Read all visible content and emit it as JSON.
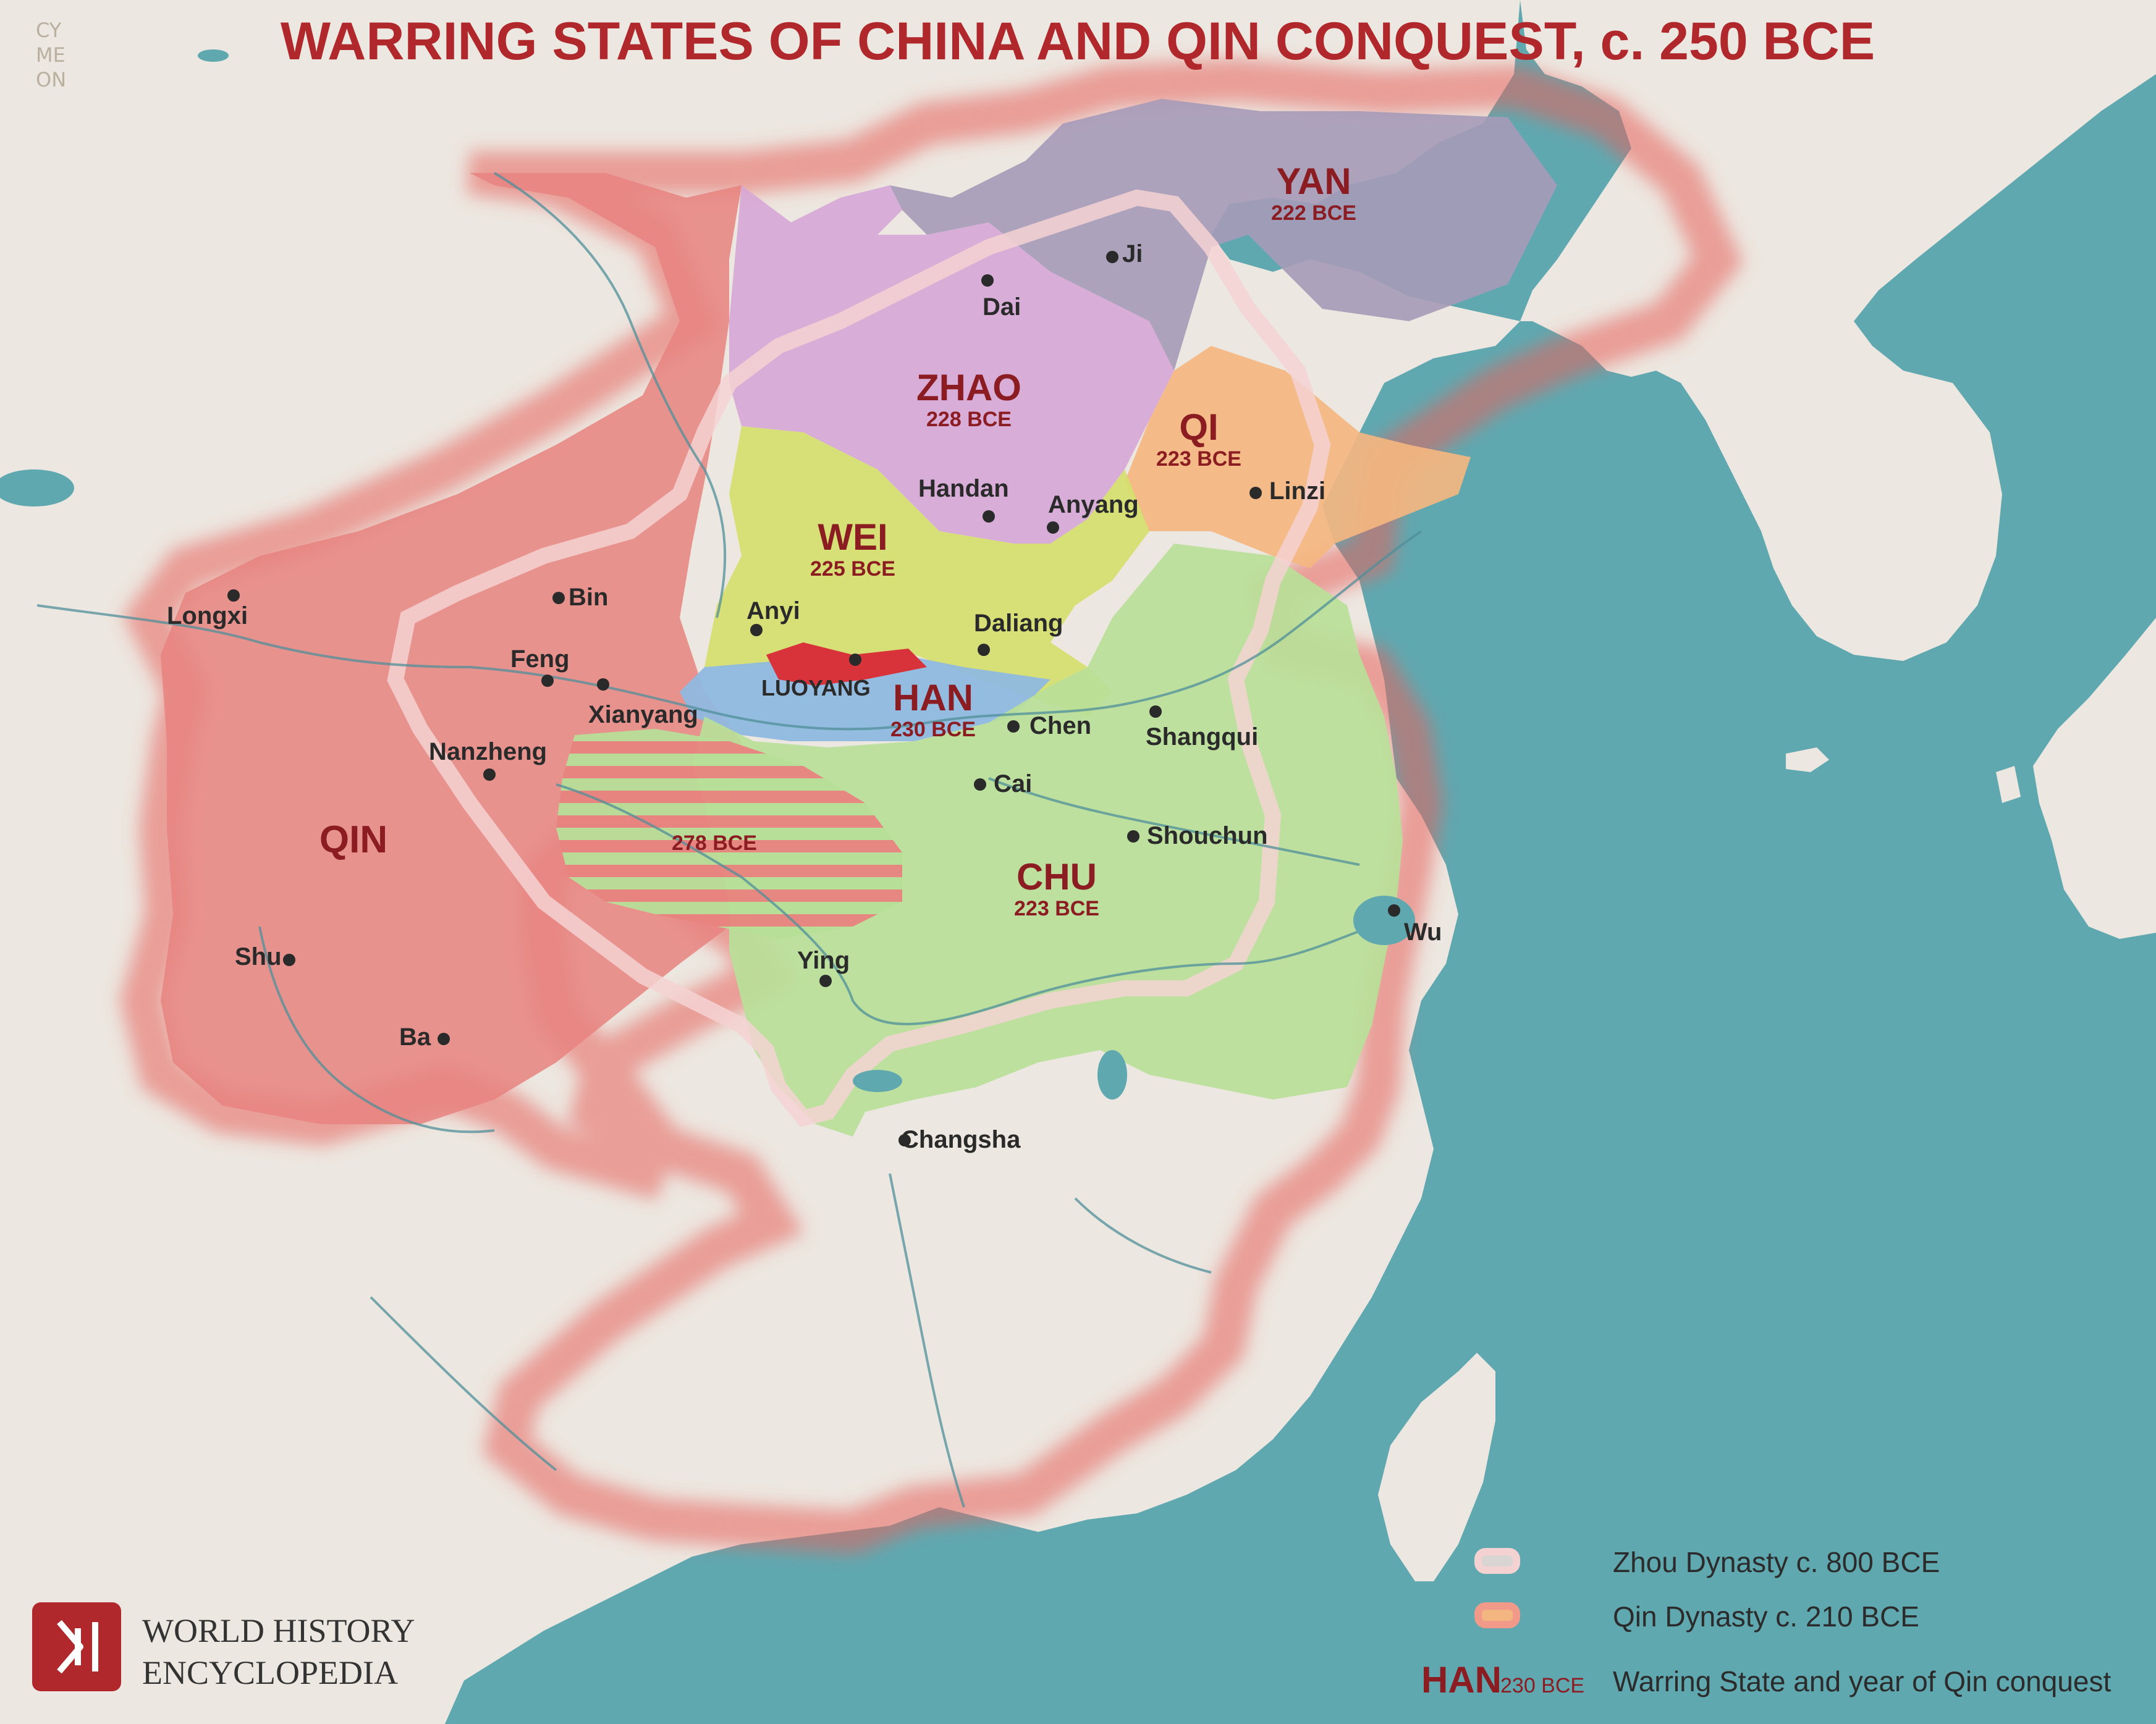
{
  "title": "WARRING STATES OF CHINA AND QIN CONQUEST, c. 250 BCE",
  "signature": [
    "CY",
    "ME",
    "ON"
  ],
  "colors": {
    "sea": "#5fa8b0",
    "land": "#ece7e0",
    "qin": "#e8837f",
    "chu": "#b8df98",
    "zhao": "#d6a6d6",
    "yan": "#a69ab8",
    "wei": "#d5df6c",
    "han": "#8fb9df",
    "qi": "#f4b680",
    "zhou_outline": "#f2c6c6",
    "title_red": "#b0282c"
  },
  "states": [
    {
      "name": "QIN",
      "year": ""
    },
    {
      "name": "ZHAO",
      "year": "228 BCE"
    },
    {
      "name": "YAN",
      "year": "222 BCE"
    },
    {
      "name": "QI",
      "year": "223 BCE"
    },
    {
      "name": "WEI",
      "year": "225 BCE"
    },
    {
      "name": "HAN",
      "year": "230 BCE"
    },
    {
      "name": "CHU",
      "year": "223 BCE"
    }
  ],
  "conquest_area_label": "278 BCE",
  "cities": [
    "Ji",
    "Dai",
    "Handan",
    "Anyang",
    "Linzi",
    "Anyi",
    "Daliang",
    "LUOYANG",
    "Chen",
    "Shangqui",
    "Cai",
    "Shouchun",
    "Wu",
    "Ying",
    "Changsha",
    "Longxi",
    "Bin",
    "Feng",
    "Xianyang",
    "Nanzheng",
    "Shu",
    "Ba"
  ],
  "legend": {
    "zhou": "Zhou Dynasty c. 800 BCE",
    "qin": "Qin Dynasty c. 210 BCE",
    "sample_state": "HAN",
    "sample_year": "230 BCE",
    "warring": "Warring State and year of Qin conquest"
  },
  "logo": {
    "line1": "WORLD HISTORY",
    "line2": "ENCYCLOPEDIA",
    "icon": "whe-logo-icon"
  }
}
